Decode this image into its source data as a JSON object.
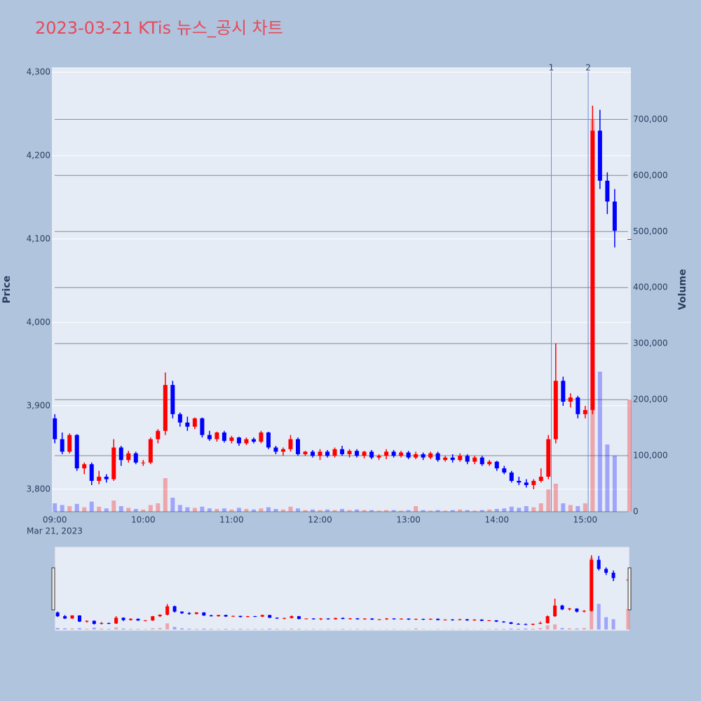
{
  "chart_data": {
    "type": "candlestick",
    "title": "2023-03-21 KTis 뉴스_공시 차트",
    "y_label": "Price",
    "y2_label": "Volume",
    "x_date_label": "Mar 21, 2023",
    "up_color": "#ff0000",
    "down_color": "#0000ff",
    "x": [
      "09:00",
      "09:05",
      "09:10",
      "09:15",
      "09:20",
      "09:25",
      "09:30",
      "09:35",
      "09:40",
      "09:45",
      "09:50",
      "09:55",
      "10:00",
      "10:05",
      "10:10",
      "10:15",
      "10:20",
      "10:25",
      "10:30",
      "10:35",
      "10:40",
      "10:45",
      "10:50",
      "10:55",
      "11:00",
      "11:05",
      "11:10",
      "11:15",
      "11:20",
      "11:25",
      "11:30",
      "11:35",
      "11:40",
      "11:45",
      "11:50",
      "11:55",
      "12:00",
      "12:05",
      "12:10",
      "12:15",
      "12:20",
      "12:25",
      "12:30",
      "12:35",
      "12:40",
      "12:45",
      "12:50",
      "12:55",
      "13:00",
      "13:05",
      "13:10",
      "13:15",
      "13:20",
      "13:25",
      "13:30",
      "13:35",
      "13:40",
      "13:45",
      "13:50",
      "13:55",
      "14:00",
      "14:05",
      "14:10",
      "14:15",
      "14:20",
      "14:25",
      "14:30",
      "14:35",
      "14:40",
      "14:45",
      "14:50",
      "14:55",
      "15:00",
      "15:05",
      "15:10",
      "15:15",
      "15:20",
      "15:30"
    ],
    "open": [
      3885,
      3860,
      3845,
      3865,
      3825,
      3830,
      3810,
      3815,
      3812,
      3850,
      3835,
      3843,
      3832,
      3832,
      3860,
      3870,
      3925,
      3890,
      3880,
      3875,
      3885,
      3865,
      3860,
      3868,
      3858,
      3862,
      3855,
      3860,
      3857,
      3868,
      3850,
      3845,
      3848,
      3860,
      3842,
      3845,
      3840,
      3845,
      3840,
      3848,
      3842,
      3846,
      3840,
      3845,
      3838,
      3840,
      3845,
      3840,
      3844,
      3838,
      3842,
      3838,
      3843,
      3835,
      3838,
      3835,
      3840,
      3833,
      3838,
      3830,
      3833,
      3825,
      3820,
      3810,
      3808,
      3805,
      3810,
      3815,
      3860,
      3930,
      3905,
      3910,
      3890,
      3895,
      4230,
      4170,
      4145,
      4100
    ],
    "high": [
      3890,
      3868,
      3867,
      3866,
      3832,
      3832,
      3822,
      3818,
      3860,
      3852,
      3846,
      3845,
      3835,
      3862,
      3872,
      3940,
      3930,
      3892,
      3887,
      3886,
      3886,
      3870,
      3869,
      3870,
      3864,
      3863,
      3862,
      3862,
      3870,
      3869,
      3852,
      3850,
      3865,
      3862,
      3846,
      3847,
      3848,
      3847,
      3850,
      3852,
      3848,
      3848,
      3846,
      3847,
      3842,
      3848,
      3847,
      3846,
      3846,
      3845,
      3844,
      3845,
      3845,
      3840,
      3842,
      3843,
      3842,
      3840,
      3840,
      3835,
      3834,
      3828,
      3822,
      3815,
      3812,
      3812,
      3825,
      3865,
      3975,
      3935,
      3915,
      3912,
      3900,
      4260,
      4255,
      4180,
      4160,
      4100
    ],
    "low": [
      3855,
      3842,
      3843,
      3822,
      3818,
      3805,
      3806,
      3808,
      3810,
      3828,
      3832,
      3830,
      3828,
      3830,
      3855,
      3865,
      3885,
      3875,
      3870,
      3872,
      3862,
      3858,
      3857,
      3856,
      3855,
      3852,
      3853,
      3855,
      3855,
      3848,
      3842,
      3840,
      3845,
      3840,
      3840,
      3838,
      3835,
      3838,
      3838,
      3840,
      3838,
      3838,
      3837,
      3836,
      3835,
      3836,
      3838,
      3838,
      3836,
      3836,
      3835,
      3836,
      3833,
      3833,
      3832,
      3833,
      3830,
      3830,
      3828,
      3828,
      3822,
      3818,
      3808,
      3805,
      3802,
      3800,
      3808,
      3812,
      3855,
      3900,
      3898,
      3885,
      3885,
      3890,
      4160,
      4130,
      4090,
      4100
    ],
    "close": [
      3860,
      3845,
      3865,
      3825,
      3830,
      3810,
      3815,
      3812,
      3850,
      3835,
      3843,
      3832,
      3832,
      3860,
      3870,
      3925,
      3890,
      3880,
      3875,
      3885,
      3865,
      3860,
      3868,
      3858,
      3862,
      3855,
      3860,
      3857,
      3868,
      3850,
      3845,
      3848,
      3860,
      3842,
      3845,
      3840,
      3845,
      3840,
      3848,
      3842,
      3846,
      3840,
      3845,
      3838,
      3840,
      3845,
      3840,
      3844,
      3838,
      3842,
      3838,
      3843,
      3835,
      3838,
      3835,
      3840,
      3833,
      3838,
      3830,
      3833,
      3825,
      3820,
      3810,
      3808,
      3805,
      3810,
      3815,
      3860,
      3930,
      3905,
      3910,
      3890,
      3895,
      4230,
      4170,
      4145,
      4110,
      4100
    ],
    "volume": [
      15000,
      12000,
      10000,
      14000,
      8000,
      18000,
      9000,
      6000,
      20000,
      10000,
      7000,
      5000,
      4000,
      12000,
      15000,
      60000,
      25000,
      12000,
      8000,
      7000,
      9000,
      6000,
      5000,
      6000,
      4000,
      7000,
      5000,
      4000,
      6000,
      8000,
      5000,
      4000,
      9000,
      6000,
      3000,
      4000,
      3000,
      4000,
      3000,
      5000,
      3000,
      4000,
      3000,
      3000,
      2000,
      3000,
      3000,
      2000,
      3000,
      10000,
      3000,
      2000,
      3000,
      2000,
      3000,
      4000,
      3000,
      2000,
      3000,
      4000,
      5000,
      6000,
      9000,
      7000,
      10000,
      8000,
      15000,
      40000,
      50000,
      15000,
      12000,
      10000,
      15000,
      700000,
      250000,
      120000,
      100000,
      200000
    ],
    "xlim": [
      "08:58",
      "15:31"
    ],
    "xticks": [
      "09:00",
      "10:00",
      "11:00",
      "12:00",
      "13:00",
      "14:00",
      "15:00"
    ],
    "ylim": [
      3773,
      4306
    ],
    "yticks": [
      {
        "value": 3800,
        "label": "3,800"
      },
      {
        "value": 3900,
        "label": "3,900"
      },
      {
        "value": 4000,
        "label": "4,000"
      },
      {
        "value": 4100,
        "label": "4,100"
      },
      {
        "value": 4200,
        "label": "4,200"
      },
      {
        "value": 4300,
        "label": "4,300"
      }
    ],
    "y2lim": [
      0,
      793000
    ],
    "y2ticks": [
      0,
      {
        "value": 100000,
        "label": "100,000"
      },
      {
        "value": 200000,
        "label": "200,000"
      },
      {
        "value": 300000,
        "label": "300,000"
      },
      {
        "value": 400000,
        "label": "400,000"
      },
      {
        "value": 500000,
        "label": "500,000"
      },
      {
        "value": 600000,
        "label": "600,000"
      },
      {
        "value": 700000,
        "label": "700,000"
      }
    ],
    "annotations": [
      {
        "x": "14:37",
        "text": "1"
      },
      {
        "x": "15:02",
        "text": "2"
      }
    ],
    "range_slider": true
  }
}
